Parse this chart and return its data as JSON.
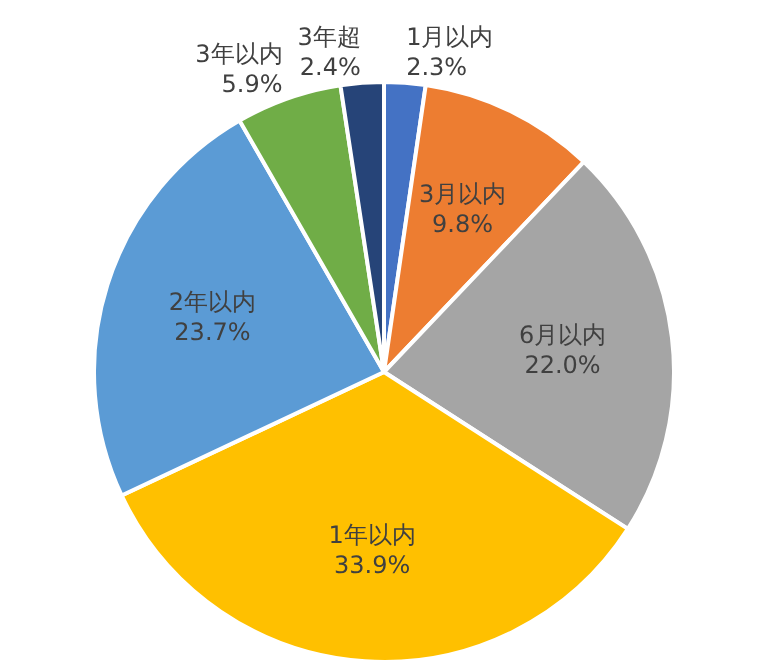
{
  "chart_data": {
    "type": "pie",
    "categories": [
      "1月以内",
      "3月以内",
      "6月以内",
      "1年以内",
      "2年以内",
      "3年以内",
      "3年超"
    ],
    "values": [
      2.3,
      9.8,
      22.0,
      33.9,
      23.7,
      5.9,
      2.4
    ],
    "colors": [
      "#4472c4",
      "#ed7d31",
      "#a5a5a5",
      "#ffc000",
      "#5b9bd5",
      "#70ad47",
      "#264478"
    ],
    "value_labels": [
      "2.3%",
      "9.8%",
      "22.0%",
      "33.9%",
      "23.7%",
      "5.9%",
      "2.4%"
    ]
  }
}
